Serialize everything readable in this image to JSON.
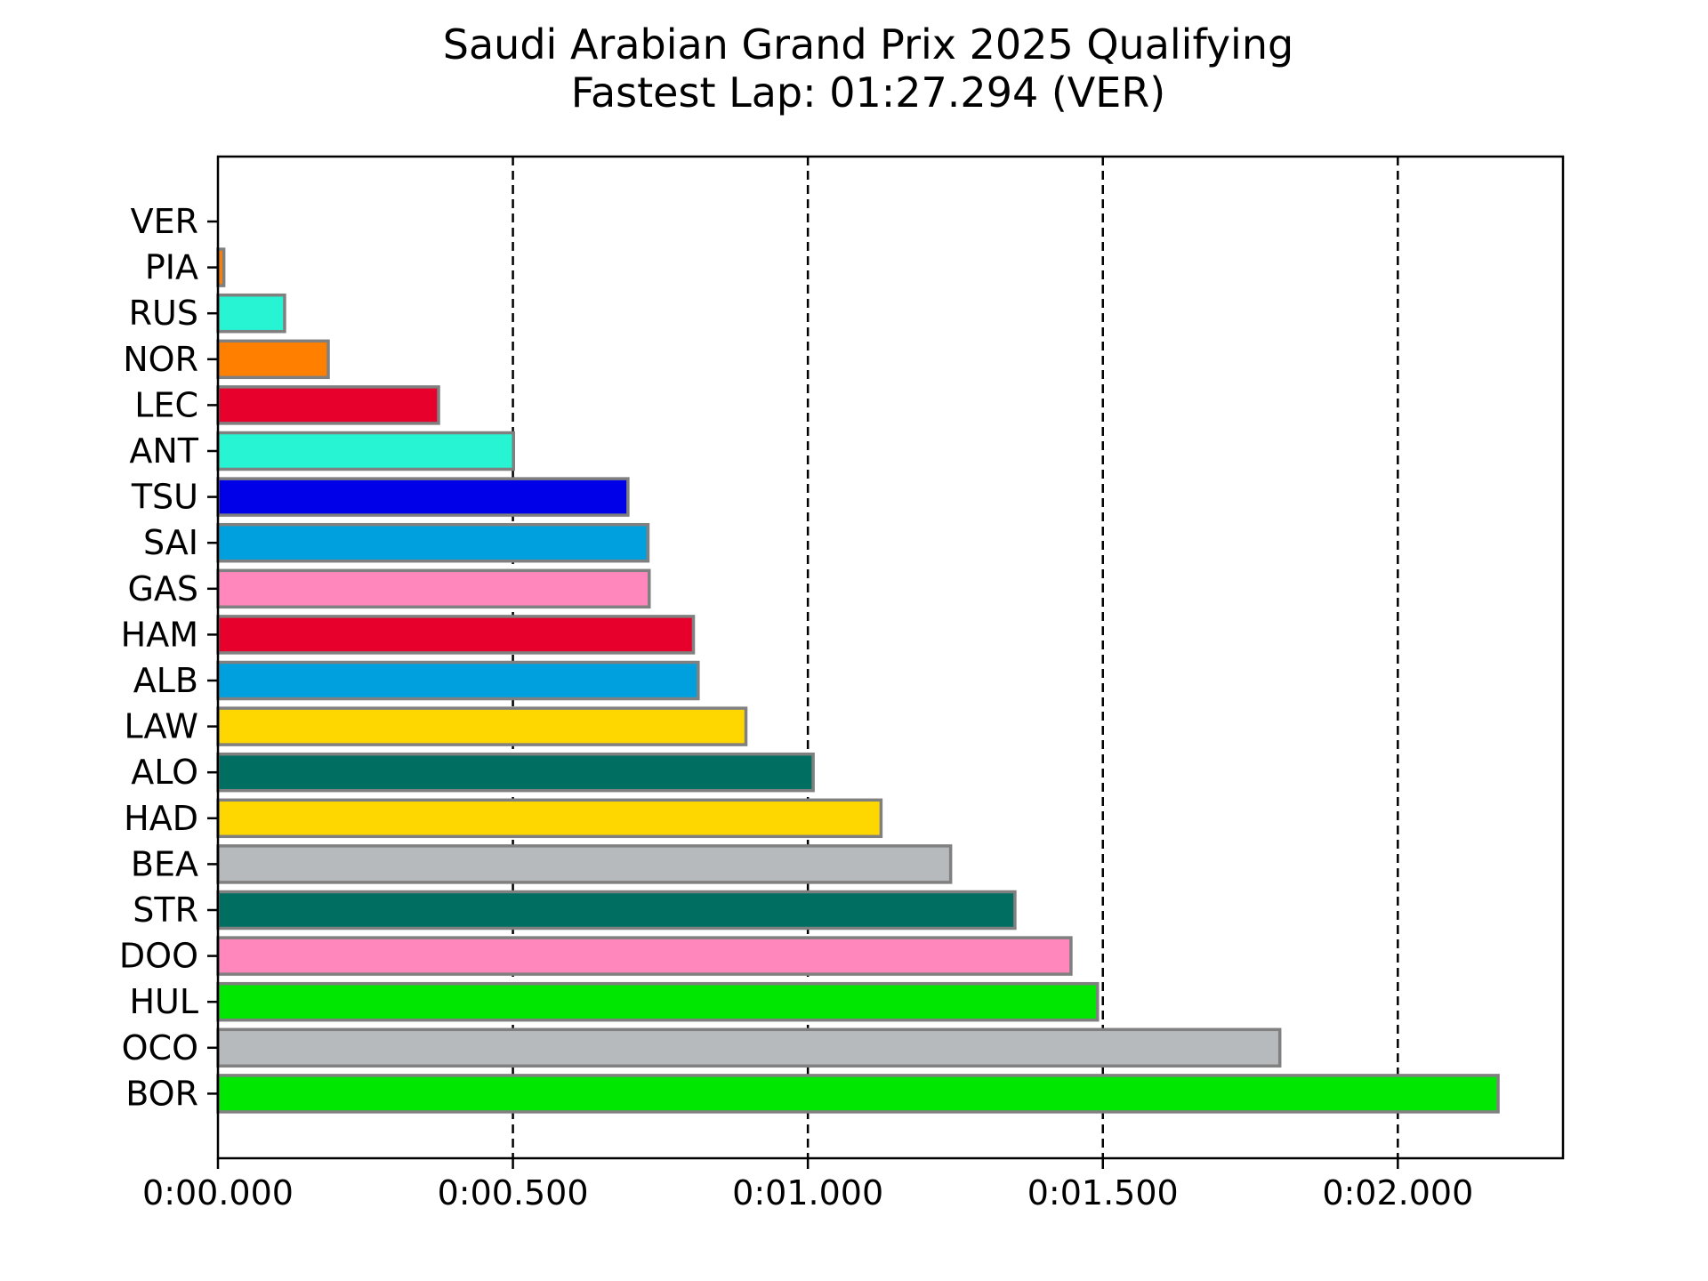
{
  "chart_data": {
    "type": "bar",
    "orientation": "horizontal",
    "title": "Saudi Arabian Grand Prix 2025 Qualifying",
    "subtitle": "Fastest Lap: 01:27.294 (VER)",
    "xlabel": "",
    "ylabel": "",
    "xlim": [
      0,
      2.28
    ],
    "grid": "x-dashed",
    "x_ticks": [
      {
        "value": 0.0,
        "label": "0:00.000"
      },
      {
        "value": 0.5,
        "label": "0:00.500"
      },
      {
        "value": 1.0,
        "label": "0:01.000"
      },
      {
        "value": 1.5,
        "label": "0:01.500"
      },
      {
        "value": 2.0,
        "label": "0:02.000"
      }
    ],
    "categories": [
      "VER",
      "PIA",
      "RUS",
      "NOR",
      "LEC",
      "ANT",
      "TSU",
      "SAI",
      "GAS",
      "HAM",
      "ALB",
      "LAW",
      "ALO",
      "HAD",
      "BEA",
      "STR",
      "DOO",
      "HUL",
      "OCO",
      "BOR"
    ],
    "values": [
      0.0,
      0.01,
      0.113,
      0.187,
      0.374,
      0.501,
      0.695,
      0.729,
      0.731,
      0.806,
      0.814,
      0.895,
      1.009,
      1.124,
      1.242,
      1.351,
      1.446,
      1.491,
      1.8,
      2.17
    ],
    "colors": [
      "#3671C6",
      "#FF8000",
      "#27F4D2",
      "#FF8000",
      "#E8002D",
      "#27F4D2",
      "#0000E8",
      "#00A0DE",
      "#FF87BC",
      "#E8002D",
      "#00A0DE",
      "#FFD700",
      "#006F62",
      "#FFD700",
      "#B6BABD",
      "#006F62",
      "#FF87BC",
      "#00E701",
      "#B6BABD",
      "#00E701"
    ],
    "value_unit": "seconds gap to fastest lap"
  }
}
